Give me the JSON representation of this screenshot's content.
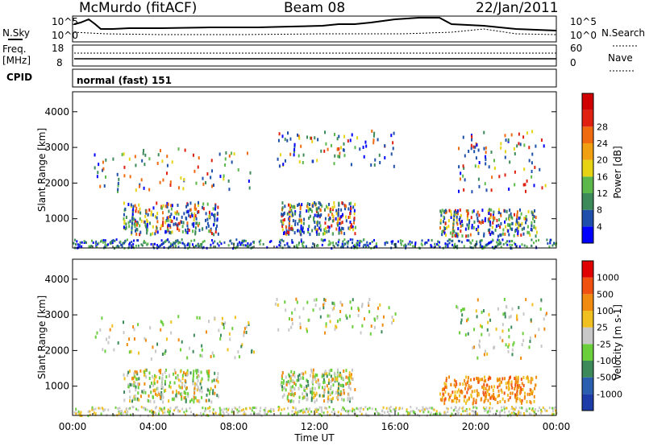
{
  "header": {
    "title_left": "McMurdo (fitACF)",
    "title_center": "Beam 08",
    "title_right": "22/Jan/2011"
  },
  "top_labels": {
    "nsky": "N.Sky",
    "nsearch": "N.Search",
    "freq_line1": "Freq.",
    "freq_line2": "[MHz]",
    "nave": "Nave",
    "cpid": "CPID",
    "mode": "normal (fast) 151",
    "noise_ticks_top": "10^5",
    "noise_ticks_bottom": "10^0",
    "freq_ticks": [
      "18",
      "8"
    ],
    "nave_ticks": [
      "60",
      "0"
    ]
  },
  "chart_data": [
    {
      "type": "heatmap",
      "name": "power",
      "ylabel": "Slant Range [km]",
      "xlabel": "Time UT",
      "ylim": [
        180,
        4560
      ],
      "yticks": [
        1000,
        2000,
        3000,
        4000
      ],
      "xticks": [
        "00:00",
        "04:00",
        "08:00",
        "12:00",
        "16:00",
        "20:00",
        "00:00"
      ],
      "colorbar": {
        "label": "Power [dB]",
        "ticks": [
          "4",
          "8",
          "12",
          "16",
          "20",
          "24",
          "28"
        ],
        "colors": [
          "#0000ff",
          "#1e4faa",
          "#3c8a5a",
          "#5cb84a",
          "#e6d414",
          "#f0a010",
          "#f06a10",
          "#e02010",
          "#d00000"
        ]
      }
    },
    {
      "type": "heatmap",
      "name": "velocity",
      "ylabel": "Slant Range [km]",
      "xlabel": "Time UT",
      "ylim": [
        180,
        4560
      ],
      "yticks": [
        1000,
        2000,
        3000,
        4000
      ],
      "xticks": [
        "00:00",
        "04:00",
        "08:00",
        "12:00",
        "16:00",
        "20:00",
        "00:00"
      ],
      "colorbar": {
        "label": "Velocity [m s-1]",
        "ticks": [
          "1000",
          "500",
          "100",
          "25",
          "-25",
          "-100",
          "-500",
          "-1000"
        ],
        "colors": [
          "#1e3ca8",
          "#2a5fb0",
          "#3c8a5a",
          "#6bcf3c",
          "#c8c8c8",
          "#f0c020",
          "#f08a10",
          "#f05010",
          "#e00000"
        ]
      }
    }
  ]
}
